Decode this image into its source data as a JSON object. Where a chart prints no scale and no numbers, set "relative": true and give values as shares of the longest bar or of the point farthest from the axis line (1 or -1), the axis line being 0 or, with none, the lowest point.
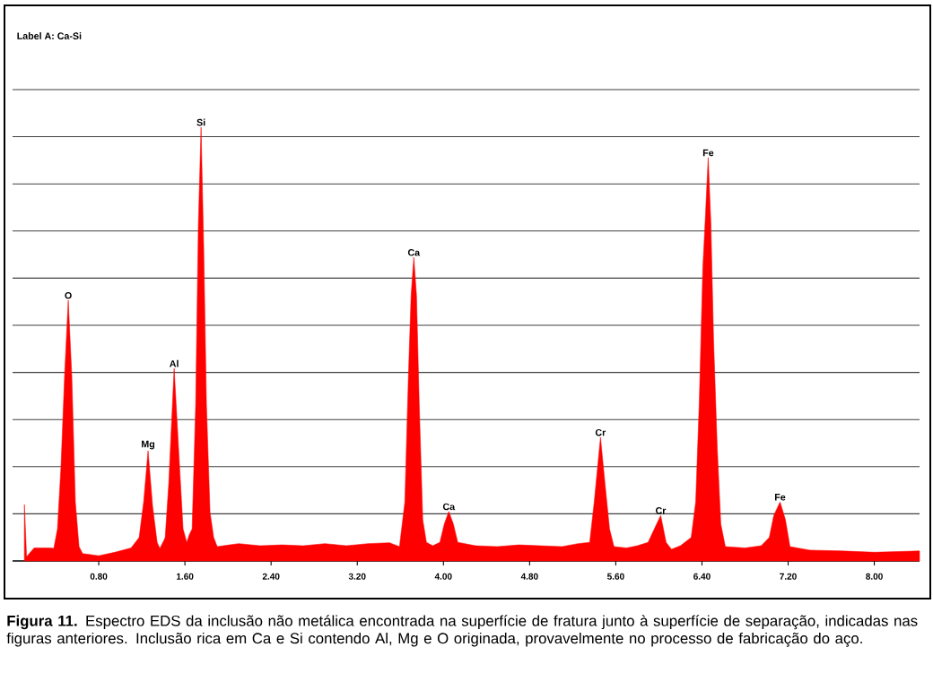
{
  "chart_data": {
    "type": "area",
    "title": "Label A: Ca-Si",
    "relative": true,
    "color": "#ff0000",
    "grid": "y",
    "xlim": [
      0,
      8.42
    ],
    "xticks": [
      {
        "value": 0.8,
        "label": "0.80"
      },
      {
        "value": 1.6,
        "label": "1.60"
      },
      {
        "value": 2.4,
        "label": "2.40"
      },
      {
        "value": 3.2,
        "label": "3.20"
      },
      {
        "value": 4.0,
        "label": "4.00"
      },
      {
        "value": 4.8,
        "label": "4.80"
      },
      {
        "value": 5.6,
        "label": "5.60"
      },
      {
        "value": 6.4,
        "label": "6.40"
      },
      {
        "value": 7.2,
        "label": "7.20"
      },
      {
        "value": 8.0,
        "label": "8.00"
      }
    ],
    "x": [
      0.11,
      0.13,
      0.2,
      0.35,
      0.383,
      0.417,
      0.45,
      0.483,
      0.517,
      0.55,
      0.583,
      0.617,
      0.65,
      0.8,
      0.95,
      1.1,
      1.175,
      1.217,
      1.258,
      1.3,
      1.342,
      1.367,
      1.4,
      1.417,
      1.45,
      1.5,
      1.55,
      1.583,
      1.617,
      1.64,
      1.667,
      1.7,
      1.725,
      1.75,
      1.775,
      1.8,
      1.833,
      1.867,
      1.9,
      2.1,
      2.3,
      2.5,
      2.7,
      2.9,
      3.1,
      3.3,
      3.5,
      3.592,
      3.642,
      3.675,
      3.7,
      3.725,
      3.75,
      3.775,
      3.808,
      3.842,
      3.9,
      3.967,
      4.008,
      4.05,
      4.092,
      4.133,
      4.3,
      4.5,
      4.7,
      4.9,
      5.1,
      5.25,
      5.358,
      5.4,
      5.458,
      5.5,
      5.542,
      5.583,
      5.7,
      5.8,
      5.9,
      5.958,
      6.017,
      6.067,
      6.117,
      6.2,
      6.3,
      6.342,
      6.375,
      6.408,
      6.433,
      6.458,
      6.483,
      6.508,
      6.542,
      6.575,
      6.617,
      6.8,
      6.95,
      7.025,
      7.067,
      7.125,
      7.175,
      7.217,
      7.4,
      7.7,
      8.0,
      8.42
    ],
    "values": [
      0.13,
      0.01,
      0.03,
      0.03,
      0.029,
      0.074,
      0.219,
      0.426,
      0.601,
      0.426,
      0.136,
      0.033,
      0.017,
      0.012,
      0.02,
      0.03,
      0.054,
      0.136,
      0.254,
      0.126,
      0.043,
      0.029,
      0.045,
      0.054,
      0.178,
      0.444,
      0.219,
      0.074,
      0.043,
      0.06,
      0.074,
      0.36,
      0.777,
      1.0,
      0.715,
      0.36,
      0.112,
      0.054,
      0.033,
      0.04,
      0.035,
      0.037,
      0.035,
      0.04,
      0.035,
      0.04,
      0.042,
      0.033,
      0.136,
      0.426,
      0.612,
      0.7,
      0.612,
      0.364,
      0.095,
      0.043,
      0.035,
      0.043,
      0.085,
      0.114,
      0.085,
      0.043,
      0.035,
      0.033,
      0.037,
      0.035,
      0.033,
      0.04,
      0.043,
      0.136,
      0.285,
      0.178,
      0.074,
      0.033,
      0.03,
      0.035,
      0.043,
      0.074,
      0.105,
      0.043,
      0.027,
      0.035,
      0.054,
      0.136,
      0.364,
      0.674,
      0.798,
      0.93,
      0.777,
      0.508,
      0.26,
      0.085,
      0.033,
      0.03,
      0.035,
      0.054,
      0.105,
      0.136,
      0.095,
      0.033,
      0.025,
      0.023,
      0.02,
      0.023
    ],
    "annotations": [
      {
        "text": "O",
        "x": 0.517,
        "y": 0.601
      },
      {
        "text": "Mg",
        "x": 1.258,
        "y": 0.254
      },
      {
        "text": "Al",
        "x": 1.5,
        "y": 0.444
      },
      {
        "text": "Si",
        "x": 1.75,
        "y": 1.0
      },
      {
        "text": "Ca",
        "x": 3.725,
        "y": 0.7
      },
      {
        "text": "Ca",
        "x": 4.05,
        "y": 0.114
      },
      {
        "text": "Cr",
        "x": 5.458,
        "y": 0.285
      },
      {
        "text": "Cr",
        "x": 6.017,
        "y": 0.105
      },
      {
        "text": "Fe",
        "x": 6.458,
        "y": 0.93
      },
      {
        "text": "Fe",
        "x": 7.125,
        "y": 0.136
      },
      "**Figura 11.** Espectro EDS da inclusão não metálica encontrada na superfície de fratura junto à superfície de separação, indicadas nas figuras anteriores. Inclusão rica em Ca e Si contendo Al, Mg e O originada, provavelmente no processo de fabricação do aço."
    ]
  }
}
